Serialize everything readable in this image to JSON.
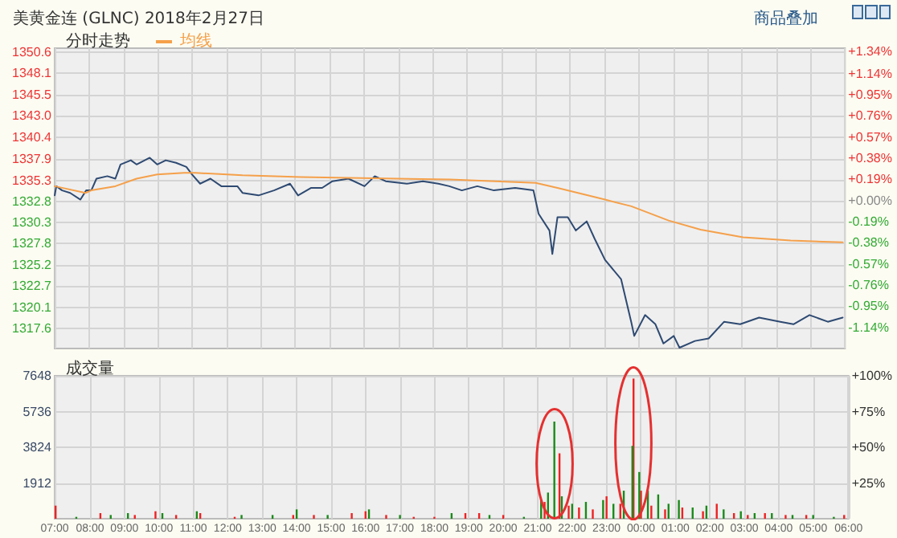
{
  "chart_data": [
    {
      "type": "line",
      "title": "美黄金连 (GLNC) 2018年2月27日",
      "subtitle": "分时走势",
      "annotations": [
        "商品叠加"
      ],
      "xlim": [
        "2018-02-27T07:00",
        "2018-02-28T06:00"
      ],
      "xticks": [
        {
          "value": "2018-02-27T07:00",
          "label": null
        },
        {
          "value": "2018-02-27T08:00",
          "label": null
        },
        {
          "value": "2018-02-27T09:00",
          "label": null
        },
        {
          "value": "2018-02-27T10:00",
          "label": null
        },
        {
          "value": "2018-02-27T11:00",
          "label": null
        },
        {
          "value": "2018-02-27T12:00",
          "label": null
        },
        {
          "value": "2018-02-27T13:00",
          "label": null
        },
        {
          "value": "2018-02-27T14:00",
          "label": null
        },
        {
          "value": "2018-02-27T15:00",
          "label": null
        },
        {
          "value": "2018-02-27T16:00",
          "label": null
        },
        {
          "value": "2018-02-27T17:00",
          "label": null
        },
        {
          "value": "2018-02-27T18:00",
          "label": null
        },
        {
          "value": "2018-02-27T19:00",
          "label": null
        },
        {
          "value": "2018-02-27T20:00",
          "label": null
        },
        {
          "value": "2018-02-27T21:00",
          "label": null
        },
        {
          "value": "2018-02-27T22:00",
          "label": null
        },
        {
          "value": "2018-02-27T23:00",
          "label": null
        },
        {
          "value": "2018-02-28T00:00",
          "label": null
        },
        {
          "value": "2018-02-28T01:00",
          "label": null
        },
        {
          "value": "2018-02-28T02:00",
          "label": null
        },
        {
          "value": "2018-02-28T03:00",
          "label": null
        },
        {
          "value": "2018-02-28T04:00",
          "label": null
        },
        {
          "value": "2018-02-28T05:00",
          "label": null
        },
        {
          "value": "2018-02-28T06:00",
          "label": null
        }
      ],
      "ylim": [
        1315.2,
        1351.1
      ],
      "yticks": [
        1317.6,
        1320.1,
        1322.7,
        1325.2,
        1327.8,
        1330.3,
        1332.8,
        1335.3,
        1337.9,
        1340.4,
        {
          "value": 1343.0,
          "label": "1343.0"
        },
        1345.5,
        1348.1,
        1350.6
      ],
      "y2lim": [
        -1.33,
        1.37
      ],
      "y2ticks": [
        {
          "value": -1.14,
          "label": "-1.14%"
        },
        {
          "value": -0.95,
          "label": "-0.95%"
        },
        {
          "value": -0.76,
          "label": "-0.76%"
        },
        {
          "value": -0.57,
          "label": "-0.57%"
        },
        {
          "value": -0.38,
          "label": "-0.38%"
        },
        {
          "value": -0.19,
          "label": "-0.19%"
        },
        {
          "value": 0,
          "label": "+0.00%"
        },
        {
          "value": 0.19,
          "label": "+0.19%"
        },
        {
          "value": 0.38,
          "label": "+0.38%"
        },
        {
          "value": 0.57,
          "label": "+0.57%"
        },
        {
          "value": 0.76,
          "label": "+0.76%"
        },
        {
          "value": 0.95,
          "label": "+0.95%"
        },
        {
          "value": 1.14,
          "label": "+1.14%"
        },
        {
          "value": 1.34,
          "label": "+1.34%"
        }
      ],
      "tick_labels": "y",
      "grid": true,
      "legend": "top left",
      "marker": "none",
      "line_style": "solid",
      "series": [
        {
          "color": "#2e4a72",
          "x": [
            "2018-02-27T07:00",
            "2018-02-27T07:03",
            "2018-02-27T07:13",
            "2018-02-27T07:27",
            "2018-02-27T07:45",
            "2018-02-27T07:55",
            "2018-02-27T08:04",
            "2018-02-27T08:13",
            "2018-02-27T08:32",
            "2018-02-27T08:46",
            "2018-02-27T08:55",
            "2018-02-27T09:13",
            "2018-02-27T09:23",
            "2018-02-27T09:46",
            "2018-02-27T09:59",
            "2018-02-27T10:14",
            "2018-02-27T10:32",
            "2018-02-27T10:50",
            "2018-02-27T11:00",
            "2018-02-27T11:14",
            "2018-02-27T11:32",
            "2018-02-27T11:51",
            "2018-02-27T12:19",
            "2018-02-27T12:28",
            "2018-02-27T12:56",
            "2018-02-27T13:23",
            "2018-02-27T13:51",
            "2018-02-27T14:05",
            "2018-02-27T14:28",
            "2018-02-27T14:47",
            "2018-02-27T15:05",
            "2018-02-27T15:33",
            "2018-02-27T16:01",
            "2018-02-27T16:19",
            "2018-02-27T16:38",
            "2018-02-27T17:15",
            "2018-02-27T17:43",
            "2018-02-27T18:10",
            "2018-02-27T18:29",
            "2018-02-27T18:51",
            "2018-02-27T19:18",
            "2018-02-27T19:47",
            "2018-02-27T20:24",
            "2018-02-27T20:56",
            "2018-02-27T21:05",
            "2018-02-27T21:24",
            "2018-02-27T21:29",
            "2018-02-27T21:38",
            "2018-02-27T21:56",
            "2018-02-27T22:10",
            "2018-02-27T22:29",
            "2018-02-27T22:43",
            "2018-02-27T23:01",
            "2018-02-27T23:29",
            "2018-02-27T23:47",
            "2018-02-27T23:52",
            "2018-02-28T00:11",
            "2018-02-28T00:29",
            "2018-02-28T00:43",
            "2018-02-28T01:01",
            "2018-02-28T01:11",
            "2018-02-28T01:38",
            "2018-02-28T02:02",
            "2018-02-28T02:29",
            "2018-02-28T02:57",
            "2018-02-28T03:30",
            "2018-02-28T04:07",
            "2018-02-28T04:30",
            "2018-02-28T04:58",
            "2018-02-28T05:30",
            "2018-02-28T05:56"
          ],
          "values": [
            1333.5,
            1334.6,
            1334.1,
            1333.8,
            1333.0,
            1334.1,
            1334.1,
            1335.5,
            1335.8,
            1335.5,
            1337.2,
            1337.7,
            1337.2,
            1338.0,
            1337.2,
            1337.7,
            1337.4,
            1336.9,
            1336.0,
            1334.9,
            1335.5,
            1334.6,
            1334.6,
            1333.8,
            1333.5,
            1334.1,
            1334.9,
            1333.5,
            1334.4,
            1334.4,
            1335.2,
            1335.5,
            1334.6,
            1335.8,
            1335.2,
            1334.9,
            1335.2,
            1334.9,
            1334.6,
            1334.1,
            1334.6,
            1334.1,
            1334.4,
            1334.1,
            1331.3,
            1329.3,
            1326.5,
            1330.9,
            1330.9,
            1329.3,
            1330.4,
            1328.3,
            1325.8,
            1323.5,
            1318.3,
            1316.7,
            1319.2,
            1318.1,
            1315.8,
            1316.7,
            1315.3,
            1316.1,
            1316.4,
            1318.4,
            1318.1,
            1318.9,
            1318.4,
            1318.1,
            1319.2,
            1318.4,
            1318.9
          ]
        },
        {
          "name": "均线",
          "color": "#f5a04a",
          "x": [
            "2018-02-27T07:00",
            "2018-02-27T07:54",
            "2018-02-27T08:04",
            "2018-02-27T08:46",
            "2018-02-27T09:23",
            "2018-02-27T09:59",
            "2018-02-27T10:46",
            "2018-02-27T11:06",
            "2018-02-27T12:28",
            "2018-02-27T14:10",
            "2018-02-27T18:30",
            "2018-02-27T21:00",
            "2018-02-27T21:38",
            "2018-02-27T23:01",
            "2018-02-27T23:47",
            "2018-02-28T00:52",
            "2018-02-28T01:48",
            "2018-02-28T03:02",
            "2018-02-28T04:25",
            "2018-02-28T05:56"
          ],
          "values": [
            1334.6,
            1333.8,
            1334.1,
            1334.6,
            1335.5,
            1336.0,
            1336.2,
            1336.2,
            1335.9,
            1335.7,
            1335.4,
            1335.0,
            1334.4,
            1333.0,
            1332.2,
            1330.5,
            1329.4,
            1328.5,
            1328.1,
            1327.9
          ]
        }
      ]
    },
    {
      "type": "bar",
      "title": "成交量",
      "xlim": [
        "2018-02-27T07:00",
        "2018-02-28T06:00"
      ],
      "xticks": [
        {
          "value": "2018-02-27T07:00",
          "label": "07:00"
        },
        {
          "value": "2018-02-27T08:00",
          "label": "08:00"
        },
        {
          "value": "2018-02-27T09:00",
          "label": "09:00"
        },
        {
          "value": "2018-02-27T10:00",
          "label": "10:00"
        },
        {
          "value": "2018-02-27T11:00",
          "label": "11:00"
        },
        {
          "value": "2018-02-27T12:00",
          "label": "12:00"
        },
        {
          "value": "2018-02-27T13:00",
          "label": "13:00"
        },
        {
          "value": "2018-02-27T14:00",
          "label": "14:00"
        },
        {
          "value": "2018-02-27T15:00",
          "label": "15:00"
        },
        {
          "value": "2018-02-27T16:00",
          "label": "16:00"
        },
        {
          "value": "2018-02-27T17:00",
          "label": "17:00"
        },
        {
          "value": "2018-02-27T18:00",
          "label": "18:00"
        },
        {
          "value": "2018-02-27T19:00",
          "label": "19:00"
        },
        {
          "value": "2018-02-27T20:00",
          "label": "20:00"
        },
        {
          "value": "2018-02-27T21:00",
          "label": "21:00"
        },
        {
          "value": "2018-02-27T22:00",
          "label": "22:00"
        },
        {
          "value": "2018-02-27T23:00",
          "label": "23:00"
        },
        {
          "value": "2018-02-28T00:00",
          "label": "00:00"
        },
        {
          "value": "2018-02-28T01:00",
          "label": "01:00"
        },
        {
          "value": "2018-02-28T02:00",
          "label": "02:00"
        },
        {
          "value": "2018-02-28T03:00",
          "label": "03:00"
        },
        {
          "value": "2018-02-28T04:00",
          "label": "04:00"
        },
        {
          "value": "2018-02-28T05:00",
          "label": "05:00"
        },
        {
          "value": "2018-02-28T06:00",
          "label": "06:00"
        }
      ],
      "ylim": [
        0,
        7648
      ],
      "yticks": [
        1912,
        3824,
        5736,
        7648
      ],
      "y2lim": [
        0,
        100
      ],
      "y2ticks": [
        {
          "value": 25,
          "label": "+25%"
        },
        {
          "value": 50,
          "label": "+50%"
        },
        {
          "value": 75,
          "label": "+75%"
        },
        {
          "value": 100,
          "label": "+100%"
        }
      ],
      "grid": true,
      "series": [
        {
          "color": "#ee2222",
          "x": [
            "2018-02-27T07:00",
            "2018-02-27T08:18",
            "2018-02-27T09:18",
            "2018-02-27T09:54",
            "2018-02-27T10:30",
            "2018-02-27T11:12",
            "2018-02-27T12:12",
            "2018-02-27T13:54",
            "2018-02-27T14:30",
            "2018-02-27T15:36",
            "2018-02-27T16:00",
            "2018-02-27T16:36",
            "2018-02-27T17:24",
            "2018-02-27T18:00",
            "2018-02-27T18:54",
            "2018-02-27T19:18",
            "2018-02-27T20:00",
            "2018-02-27T21:12",
            "2018-02-27T21:38",
            "2018-02-27T21:54",
            "2018-02-27T22:12",
            "2018-02-27T22:36",
            "2018-02-27T23:00",
            "2018-02-27T23:24",
            "2018-02-27T23:47",
            "2018-02-28T00:00",
            "2018-02-28T00:18",
            "2018-02-28T00:42",
            "2018-02-28T01:12",
            "2018-02-28T01:48",
            "2018-02-28T02:12",
            "2018-02-28T02:42",
            "2018-02-28T03:06",
            "2018-02-28T03:36",
            "2018-02-28T04:12",
            "2018-02-28T04:48",
            "2018-02-28T05:54"
          ],
          "values": [
            700,
            300,
            200,
            400,
            200,
            300,
            100,
            200,
            200,
            300,
            400,
            200,
            100,
            100,
            300,
            300,
            200,
            900,
            3500,
            700,
            600,
            500,
            1200,
            800,
            7500,
            1500,
            700,
            500,
            600,
            400,
            800,
            300,
            200,
            300,
            200,
            200,
            200
          ]
        },
        {
          "color": "#1a8a1a",
          "x": [
            "2018-02-27T07:36",
            "2018-02-27T08:36",
            "2018-02-27T09:06",
            "2018-02-27T10:06",
            "2018-02-27T11:06",
            "2018-02-27T12:24",
            "2018-02-27T13:18",
            "2018-02-27T14:00",
            "2018-02-27T14:54",
            "2018-02-27T16:06",
            "2018-02-27T17:00",
            "2018-02-27T18:30",
            "2018-02-27T19:36",
            "2018-02-27T20:36",
            "2018-02-27T21:06",
            "2018-02-27T21:18",
            "2018-02-27T21:29",
            "2018-02-27T21:42",
            "2018-02-27T22:00",
            "2018-02-27T22:24",
            "2018-02-27T22:54",
            "2018-02-27T23:12",
            "2018-02-27T23:30",
            "2018-02-27T23:45",
            "2018-02-27T23:57",
            "2018-02-28T00:12",
            "2018-02-28T00:30",
            "2018-02-28T00:48",
            "2018-02-28T01:06",
            "2018-02-28T01:30",
            "2018-02-28T01:54",
            "2018-02-28T02:24",
            "2018-02-28T02:54",
            "2018-02-28T03:18",
            "2018-02-28T03:48",
            "2018-02-28T04:24",
            "2018-02-28T05:00",
            "2018-02-28T05:36"
          ],
          "values": [
            100,
            200,
            300,
            300,
            400,
            200,
            200,
            500,
            200,
            500,
            200,
            300,
            200,
            100,
            1000,
            1400,
            5200,
            1200,
            800,
            900,
            1000,
            800,
            1500,
            3900,
            2500,
            1500,
            1300,
            800,
            1000,
            600,
            700,
            500,
            400,
            300,
            300,
            200,
            200,
            100
          ]
        }
      ]
    }
  ]
}
